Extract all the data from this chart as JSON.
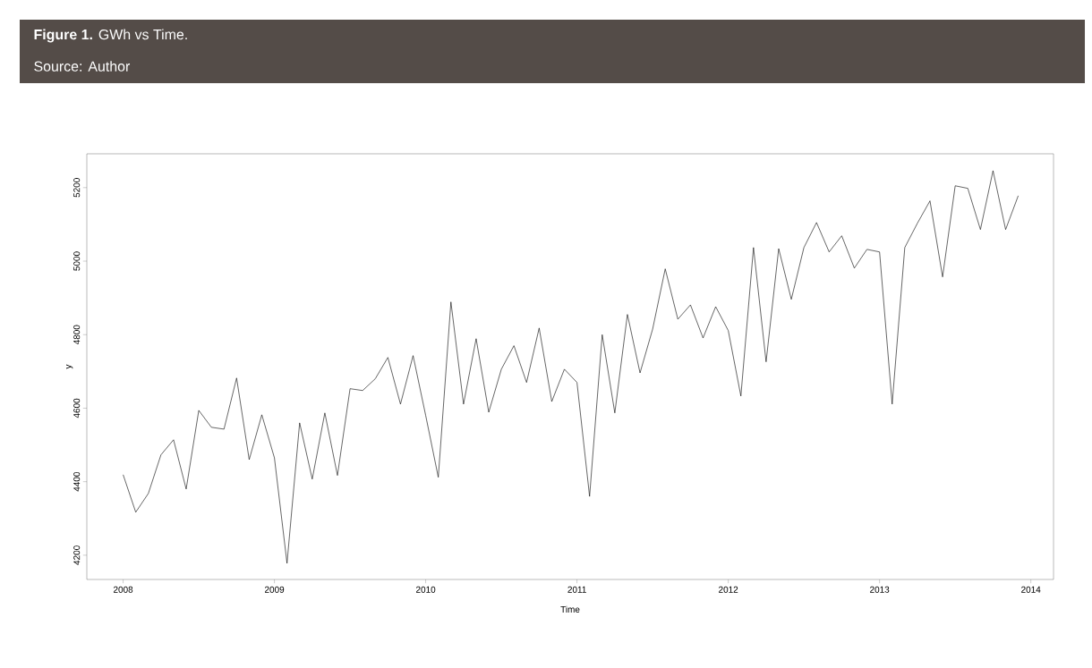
{
  "chart_data": {
    "type": "line",
    "title": "**Figure 1.** GWh vs Time.",
    "annotations": [
      "Source: Author"
    ],
    "xlabel": "Time",
    "ylabel": "y",
    "x": [
      2008,
      2008.0833,
      2008.1667,
      2008.25,
      2008.3333,
      2008.4167,
      2008.5,
      2008.5833,
      2008.6667,
      2008.75,
      2008.8333,
      2008.9167,
      2009,
      2009.0833,
      2009.1667,
      2009.25,
      2009.3333,
      2009.4167,
      2009.5,
      2009.5833,
      2009.6667,
      2009.75,
      2009.8333,
      2009.9167,
      2010,
      2010.0833,
      2010.1667,
      2010.25,
      2010.3333,
      2010.4167,
      2010.5,
      2010.5833,
      2010.6667,
      2010.75,
      2010.8333,
      2010.9167,
      2011,
      2011.0833,
      2011.1667,
      2011.25,
      2011.3333,
      2011.4167,
      2011.5,
      2011.5833,
      2011.6667,
      2011.75,
      2011.8333,
      2011.9167,
      2012,
      2012.0833,
      2012.1667,
      2012.25,
      2012.3333,
      2012.4167,
      2012.5,
      2012.5833,
      2012.6667,
      2012.75,
      2012.8333,
      2012.9167,
      2013,
      2013.0833,
      2013.1667,
      2013.25,
      2013.3333,
      2013.4167,
      2013.5,
      2013.5833,
      2013.6667,
      2013.75,
      2013.8333,
      2013.9167
    ],
    "series": [
      {
        "color": "#000000",
        "values": [
          4419,
          4317,
          4368,
          4473,
          4514,
          4380,
          4594,
          4548,
          4543,
          4682,
          4460,
          4582,
          4465,
          4178,
          4560,
          4407,
          4587,
          4417,
          4653,
          4648,
          4680,
          4738,
          4611,
          4743,
          4580,
          4412,
          4889,
          4611,
          4789,
          4589,
          4706,
          4770,
          4670,
          4818,
          4618,
          4706,
          4670,
          4360,
          4800,
          4587,
          4855,
          4696,
          4815,
          4979,
          4842,
          4881,
          4791,
          4876,
          4811,
          4633,
          5037,
          4726,
          5034,
          4896,
          5037,
          5105,
          5025,
          5069,
          4981,
          5032,
          5025,
          4611,
          5037,
          5103,
          5164,
          4957,
          5205,
          5198,
          5086,
          5246,
          5086,
          5178
        ]
      }
    ],
    "xlim": [
      2007.76,
      2014.15
    ],
    "ylim": [
      4134,
      5292
    ],
    "xticks": [
      2008,
      2009,
      2010,
      2011,
      2012,
      2013,
      2014
    ],
    "yticks": [
      4200,
      4400,
      4600,
      4800,
      5000,
      5200
    ],
    "grid": false,
    "marker": "none",
    "line_style": "solid"
  }
}
